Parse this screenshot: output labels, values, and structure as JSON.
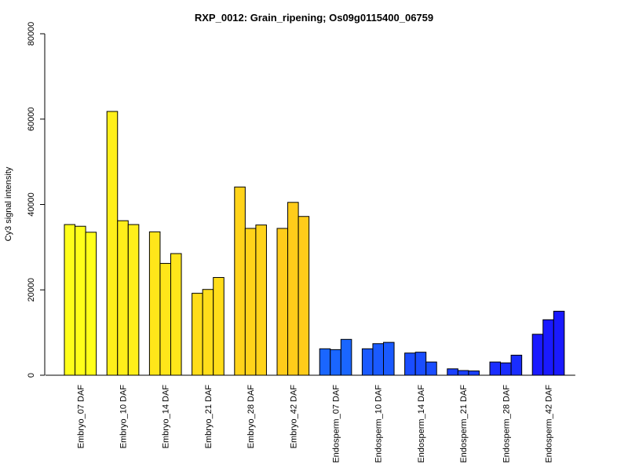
{
  "chart_data": {
    "type": "bar",
    "title": "RXP_0012: Grain_ripening; Os09g0115400_06759",
    "ylabel": "Cy3 signal intensity",
    "xlabel": "",
    "ylim": [
      0,
      80000
    ],
    "yticks": [
      0,
      20000,
      40000,
      60000,
      80000
    ],
    "ytick_labels": [
      "0",
      "20000",
      "40000",
      "60000",
      "80000"
    ],
    "grid": false,
    "legend": "none",
    "groups": [
      {
        "label": "Embryo_07 DAF",
        "color": "#ffff1a",
        "values": [
          35300,
          34900,
          33500
        ]
      },
      {
        "label": "Embryo_10 DAF",
        "color": "#ffef1a",
        "values": [
          61800,
          36200,
          35300
        ]
      },
      {
        "label": "Embryo_14 DAF",
        "color": "#ffe61a",
        "values": [
          33600,
          26200,
          28500
        ]
      },
      {
        "label": "Embryo_21 DAF",
        "color": "#ffdd1a",
        "values": [
          19200,
          20100,
          22900
        ]
      },
      {
        "label": "Embryo_28 DAF",
        "color": "#ffd31a",
        "values": [
          44100,
          34400,
          35200
        ]
      },
      {
        "label": "Embryo_42 DAF",
        "color": "#ffcc1a",
        "values": [
          34400,
          40500,
          37200
        ]
      },
      {
        "label": "Endosperm_07 DAF",
        "color": "#1a66ff",
        "values": [
          6200,
          6000,
          8400
        ]
      },
      {
        "label": "Endosperm_10 DAF",
        "color": "#1a5aff",
        "values": [
          6200,
          7400,
          7700
        ]
      },
      {
        "label": "Endosperm_14 DAF",
        "color": "#1a4dff",
        "values": [
          5200,
          5400,
          3100
        ]
      },
      {
        "label": "Endosperm_21 DAF",
        "color": "#1a40ff",
        "values": [
          1500,
          1100,
          1000
        ]
      },
      {
        "label": "Endosperm_28 DAF",
        "color": "#1a2dff",
        "values": [
          3100,
          2900,
          4700
        ]
      },
      {
        "label": "Endosperm_42 DAF",
        "color": "#1a1aff",
        "values": [
          9600,
          13000,
          15000
        ]
      }
    ]
  }
}
